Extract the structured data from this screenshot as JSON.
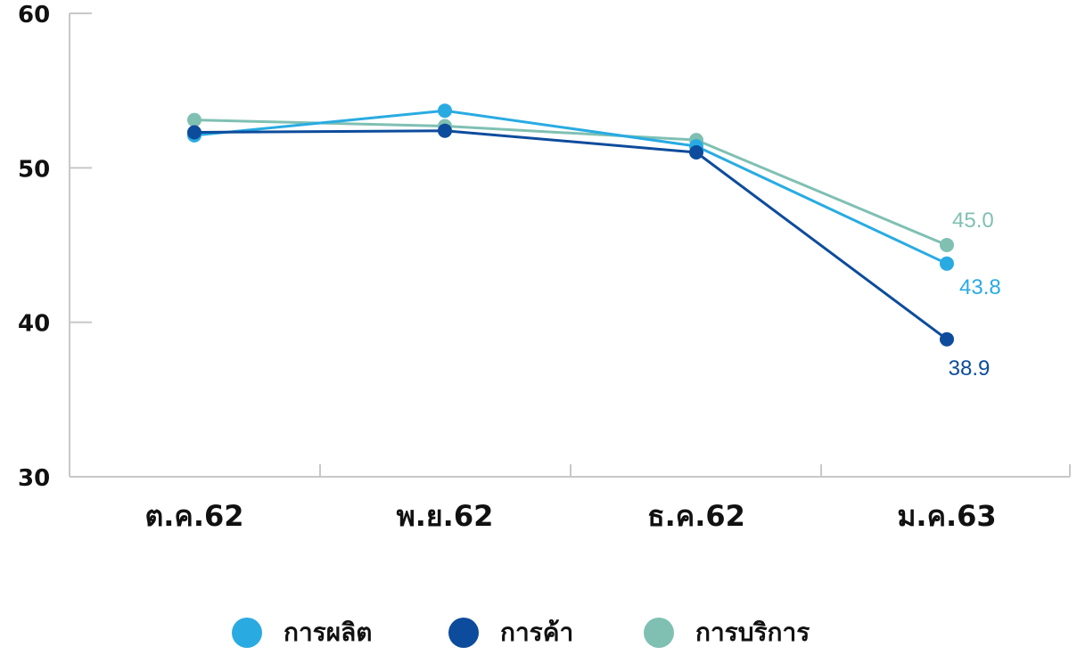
{
  "chart_data": {
    "type": "line",
    "categories": [
      "ต.ค.62",
      "พ.ย.62",
      "ธ.ค.62",
      "ม.ค.63"
    ],
    "ylim": [
      30,
      60
    ],
    "yticks": [
      30,
      40,
      50,
      60
    ],
    "grid": false,
    "legend_position": "bottom",
    "series": [
      {
        "name": "การผลิต",
        "color": "#29abe2",
        "values": [
          52.1,
          53.7,
          51.4,
          43.8
        ],
        "last_label": "43.8"
      },
      {
        "name": "การค้า",
        "color": "#0d4c9c",
        "values": [
          52.3,
          52.4,
          51.0,
          38.9
        ],
        "last_label": "38.9"
      },
      {
        "name": "การบริการ",
        "color": "#7fc0b3",
        "values": [
          53.1,
          52.7,
          51.8,
          45.0
        ],
        "last_label": "45.0"
      }
    ]
  }
}
